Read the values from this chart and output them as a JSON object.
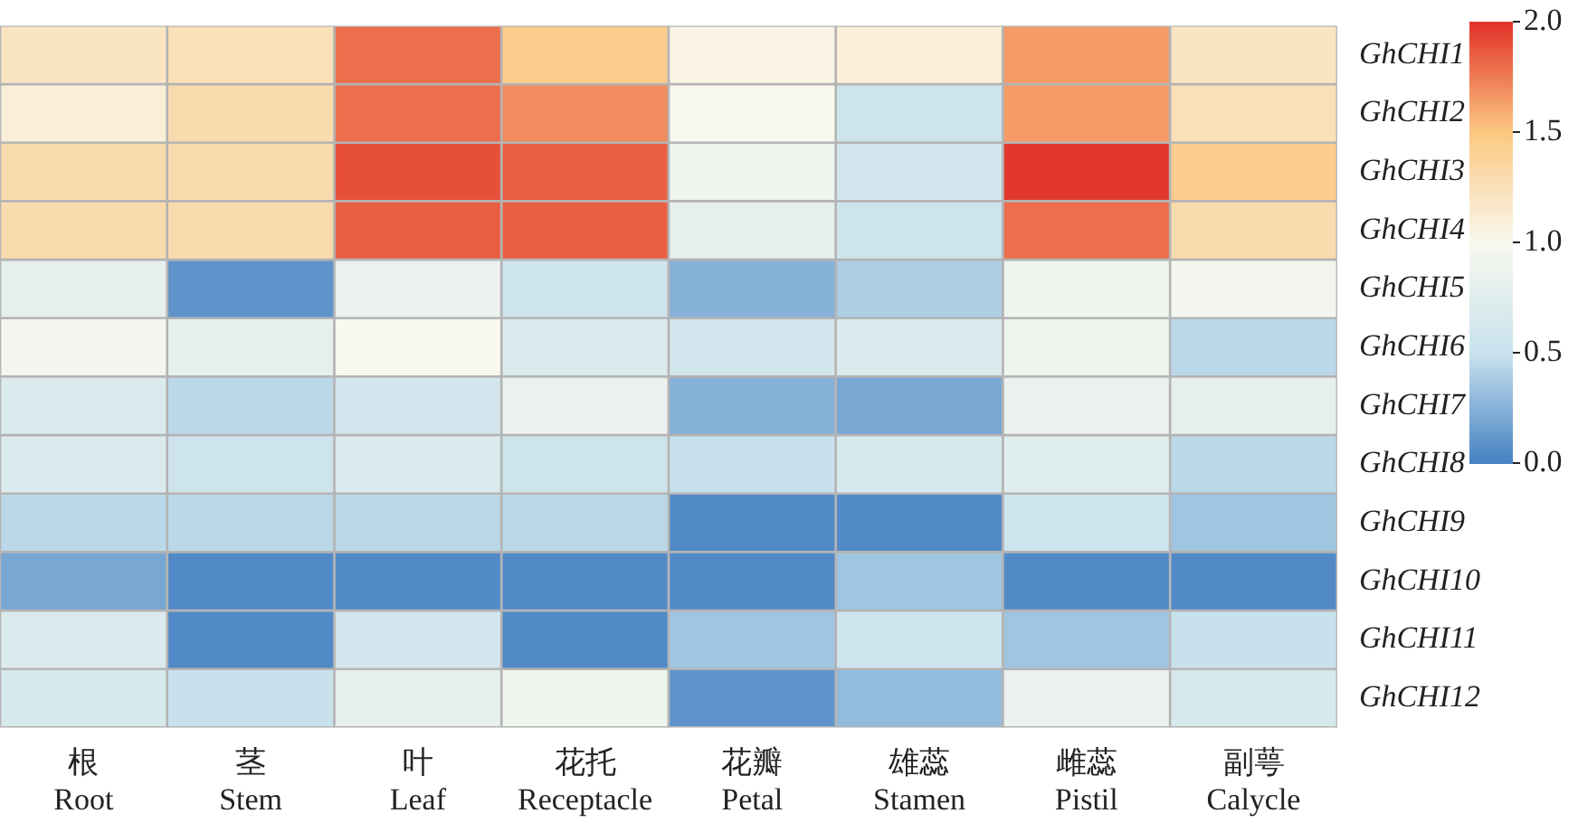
{
  "chart_data": {
    "type": "heatmap",
    "categories": [
      "根\nRoot",
      "茎\nStem",
      "叶\nLeaf",
      "花托\nReceptacle",
      "花瓣\nPetal",
      "雄蕊\nStamen",
      "雌蕊\nPistil",
      "副萼\nCalycle"
    ],
    "y_categories": [
      "GhCHI1",
      "GhCHI2",
      "GhCHI3",
      "GhCHI4",
      "GhCHI5",
      "GhCHI6",
      "GhCHI7",
      "GhCHI8",
      "GhCHI9",
      "GhCHI10",
      "GhCHI11",
      "GhCHI12"
    ],
    "cells": [
      [
        1.2,
        1.25,
        1.8,
        1.45,
        1.05,
        1.1,
        1.65,
        1.2
      ],
      [
        1.1,
        1.3,
        1.8,
        1.7,
        1.0,
        0.55,
        1.65,
        1.25
      ],
      [
        1.3,
        1.3,
        1.9,
        1.85,
        0.9,
        0.6,
        1.98,
        1.45
      ],
      [
        1.3,
        1.3,
        1.85,
        1.85,
        0.8,
        0.55,
        1.8,
        1.3
      ],
      [
        0.8,
        0.1,
        0.85,
        0.55,
        0.25,
        0.4,
        0.9,
        0.95
      ],
      [
        0.95,
        0.8,
        1.0,
        0.7,
        0.6,
        0.7,
        0.9,
        0.45
      ],
      [
        0.7,
        0.45,
        0.6,
        0.85,
        0.25,
        0.2,
        0.85,
        0.8
      ],
      [
        0.7,
        0.55,
        0.7,
        0.55,
        0.5,
        0.65,
        0.75,
        0.45
      ],
      [
        0.45,
        0.45,
        0.45,
        0.45,
        0.05,
        0.05,
        0.55,
        0.35
      ],
      [
        0.2,
        0.05,
        0.05,
        0.05,
        0.05,
        0.35,
        0.05,
        0.05
      ],
      [
        0.7,
        0.05,
        0.6,
        0.05,
        0.35,
        0.55,
        0.35,
        0.5
      ],
      [
        0.65,
        0.5,
        0.8,
        0.9,
        0.1,
        0.3,
        0.85,
        0.65
      ]
    ],
    "clim": [
      0,
      2
    ],
    "cticks": [
      {
        "value": 0,
        "label": "0.0"
      },
      {
        "value": 0.5,
        "label": "0.5"
      },
      {
        "value": 1,
        "label": "1.0"
      },
      {
        "value": 1.5,
        "label": "1.5"
      },
      {
        "value": 2,
        "label": "2.0"
      }
    ]
  }
}
